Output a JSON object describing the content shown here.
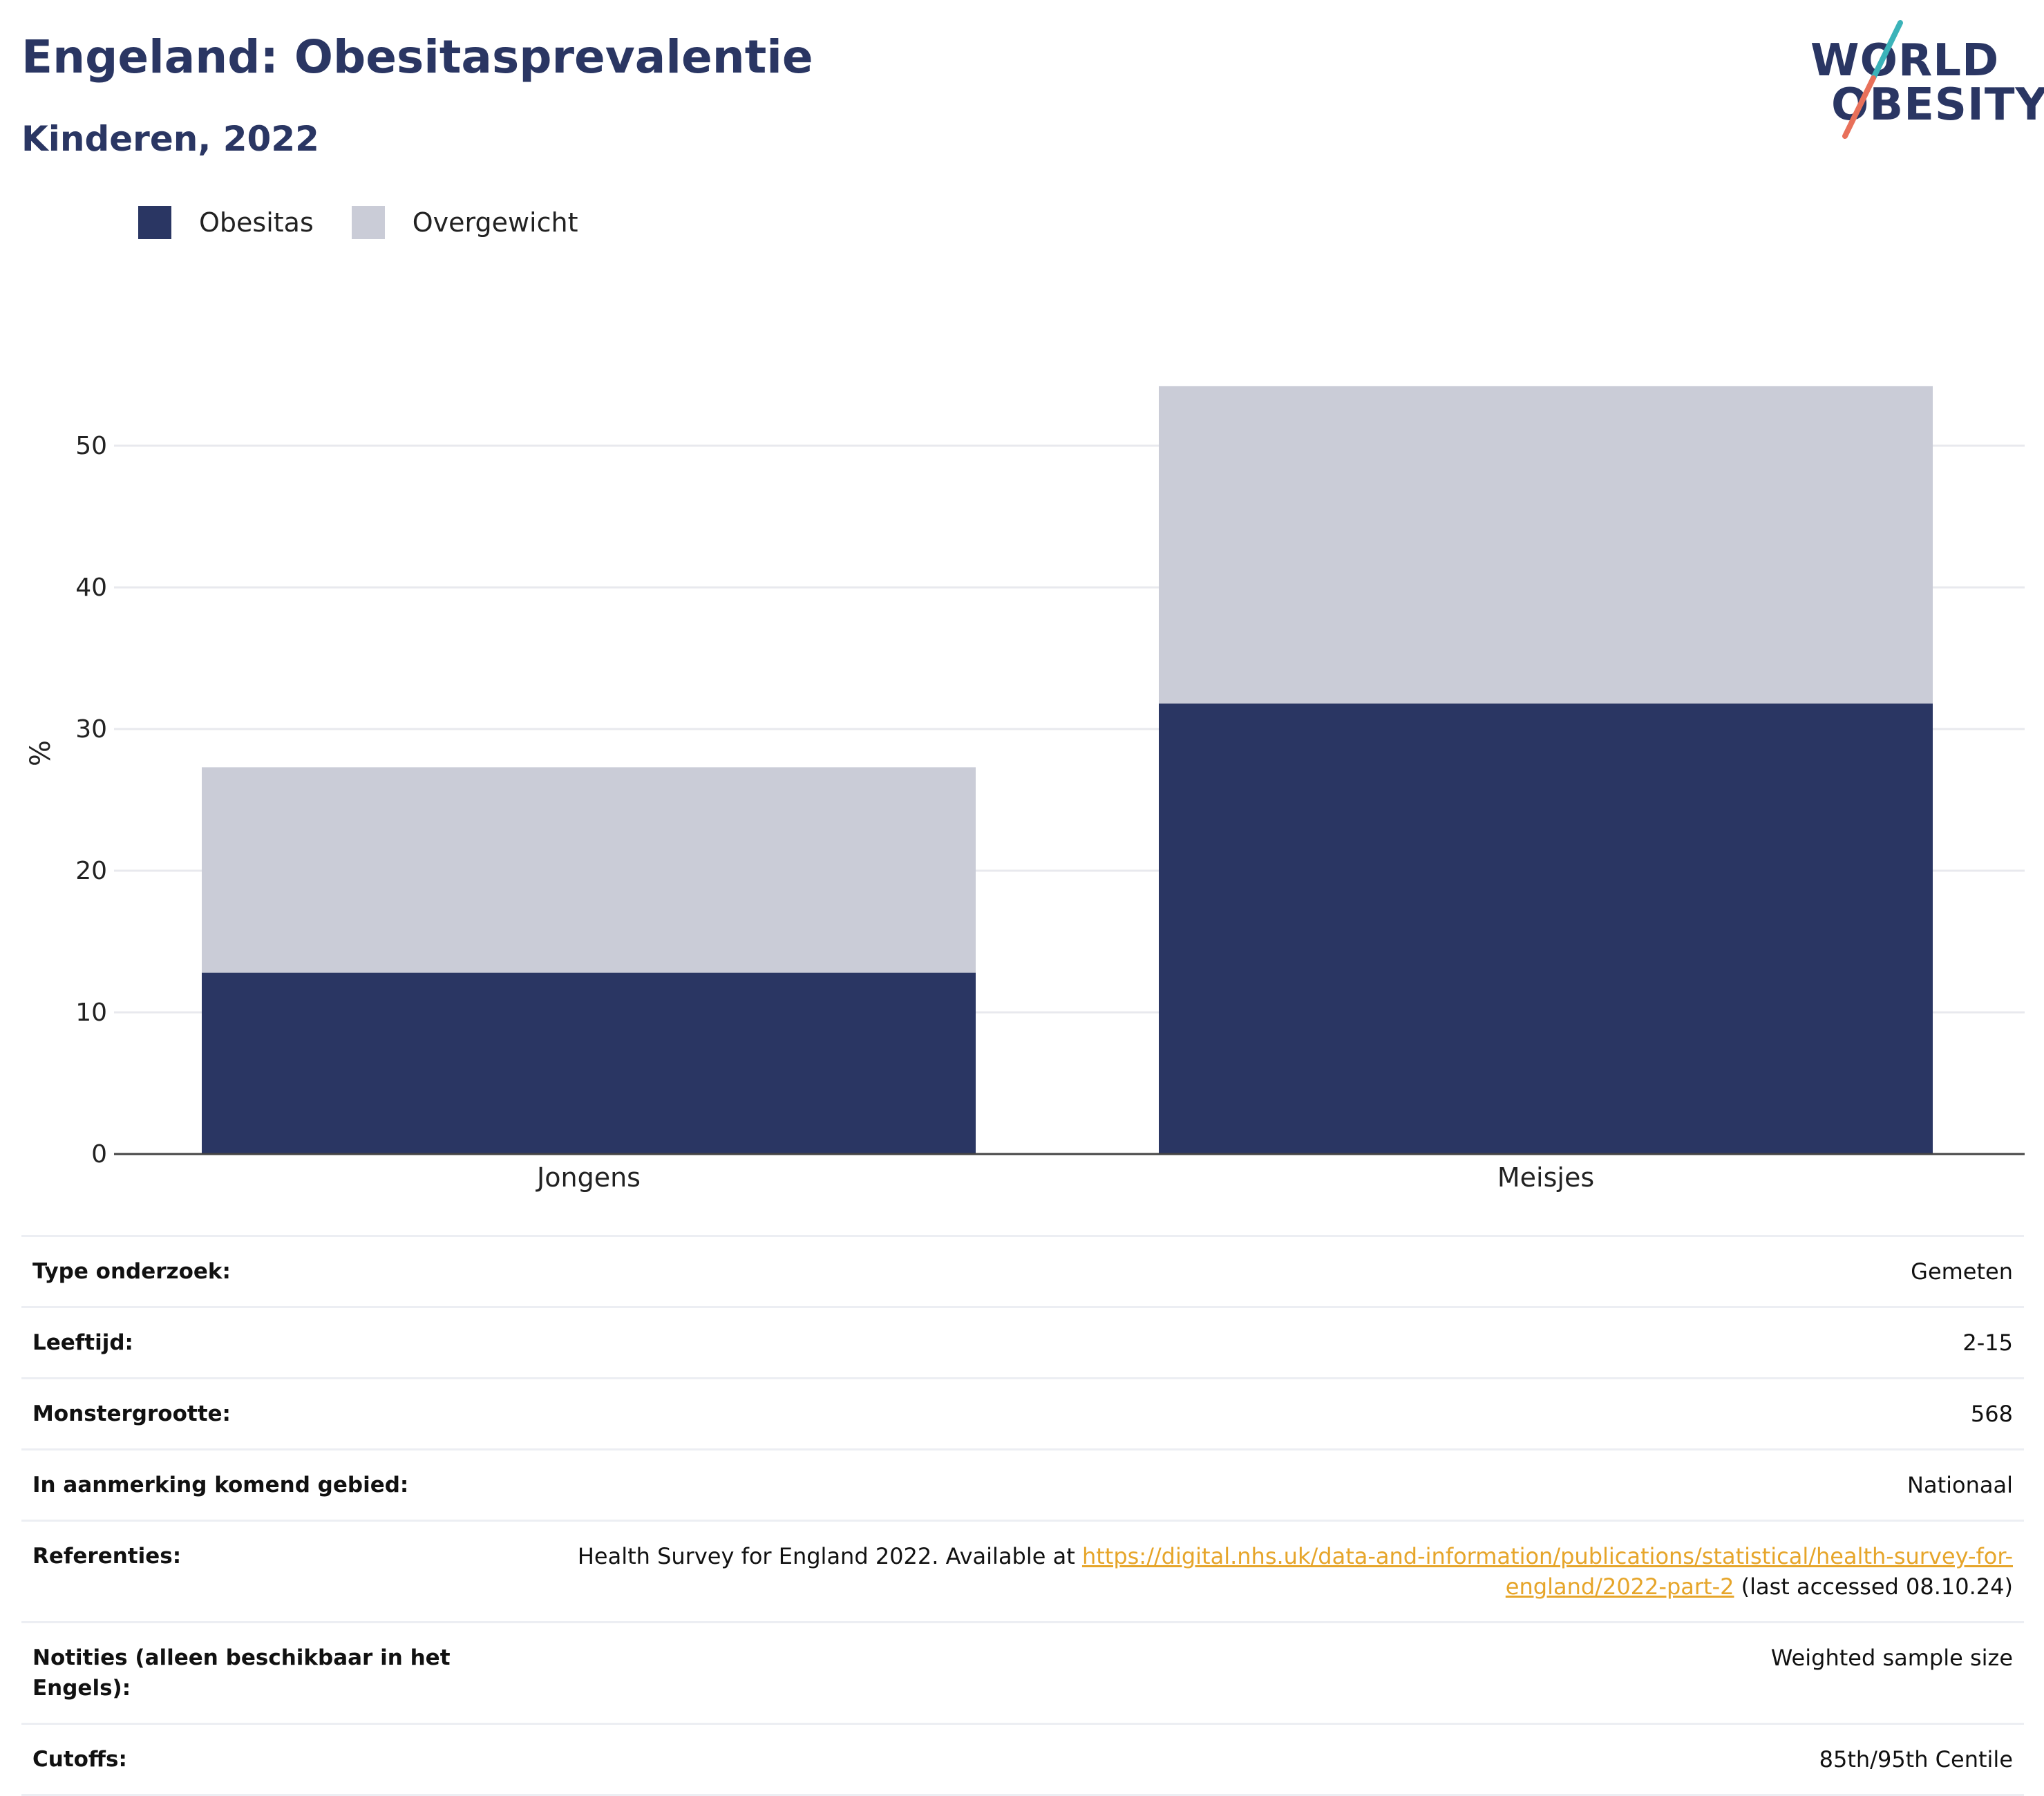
{
  "header": {
    "title": "Engeland: Obesitasprevalentie",
    "subtitle": "Kinderen, 2022"
  },
  "logo": {
    "line1": "WORLD",
    "line2": "OBESITY"
  },
  "colors": {
    "obesity": "#2a3663",
    "overweight": "#caccd7",
    "accent_teal": "#3bb3b9",
    "accent_red": "#e8705a",
    "link": "#e6a52a"
  },
  "legend": [
    {
      "label": "Obesitas",
      "color": "#2a3663"
    },
    {
      "label": "Overgewicht",
      "color": "#caccd7"
    }
  ],
  "chart_data": {
    "type": "bar",
    "stacked": true,
    "categories": [
      "Jongens",
      "Meisjes"
    ],
    "series": [
      {
        "name": "Obesitas",
        "values": [
          12.8,
          31.8
        ]
      },
      {
        "name": "Overgewicht",
        "values": [
          14.5,
          22.4
        ]
      }
    ],
    "ylabel": "%",
    "ylim": [
      0,
      55
    ],
    "yticks": [
      0,
      10,
      20,
      30,
      40,
      50
    ],
    "grid": true,
    "legend_position": "top-left"
  },
  "info": {
    "rows": [
      {
        "key": "Type onderzoek:",
        "value": "Gemeten"
      },
      {
        "key": "Leeftijd:",
        "value": "2-15"
      },
      {
        "key": "Monstergrootte:",
        "value": "568"
      },
      {
        "key": "In aanmerking komend gebied:",
        "value": "Nationaal"
      },
      {
        "key": "Referenties:",
        "value_prefix": "Health Survey for England 2022. Available at ",
        "link": "https://digital.nhs.uk/data-and-information/publications/statistical/health-survey-for-england/2022-part-2",
        "value_suffix": " (last accessed 08.10.24)"
      },
      {
        "key": "Notities (alleen beschikbaar in het Engels):",
        "value": "Weighted sample size"
      },
      {
        "key": "Cutoffs:",
        "value": "85th/95th Centile"
      }
    ]
  }
}
